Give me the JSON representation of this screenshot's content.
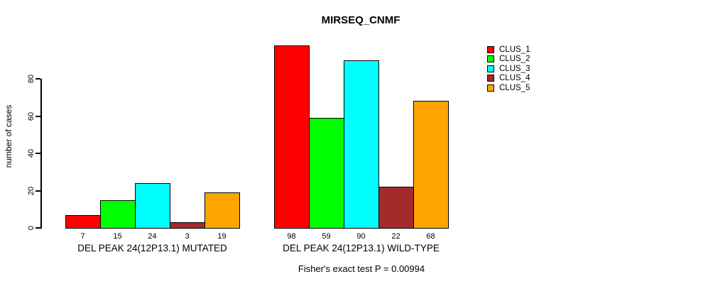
{
  "title": "MIRSEQ_CNMF",
  "ylabel": "number of cases",
  "footer": "Fisher's exact test P = 0.00994",
  "colors": {
    "background": "#ffffff",
    "axis": "#000000",
    "bar_border": "#000000"
  },
  "chart_data": {
    "type": "bar",
    "title": "MIRSEQ_CNMF",
    "xlabel": "",
    "ylabel": "number of cases",
    "ylim": [
      0,
      80
    ],
    "yticks": [
      0,
      20,
      40,
      60,
      80
    ],
    "ytick_labels": [
      "0",
      "20",
      "40",
      "60",
      "80"
    ],
    "grid": false,
    "legend_position": "right-outside",
    "value_labels_shown": true,
    "categories": [
      "DEL PEAK 24(12P13.1) MUTATED",
      "DEL PEAK 24(12P13.1) WILD-TYPE"
    ],
    "series": [
      {
        "name": "CLUS_1",
        "color": "#ff0000",
        "values": [
          7,
          98
        ]
      },
      {
        "name": "CLUS_2",
        "color": "#00ff00",
        "values": [
          15,
          59
        ]
      },
      {
        "name": "CLUS_3",
        "color": "#00ffff",
        "values": [
          24,
          90
        ]
      },
      {
        "name": "CLUS_4",
        "color": "#a52a2a",
        "values": [
          3,
          22
        ]
      },
      {
        "name": "CLUS_5",
        "color": "#ffa500",
        "values": [
          19,
          68
        ]
      }
    ],
    "groups": [
      {
        "label": "DEL PEAK 24(12P13.1) MUTATED",
        "values": [
          7,
          15,
          24,
          3,
          19
        ]
      },
      {
        "label": "DEL PEAK 24(12P13.1) WILD-TYPE",
        "values": [
          98,
          59,
          90,
          22,
          68
        ]
      }
    ],
    "annotation": "Fisher's exact test P = 0.00994"
  }
}
